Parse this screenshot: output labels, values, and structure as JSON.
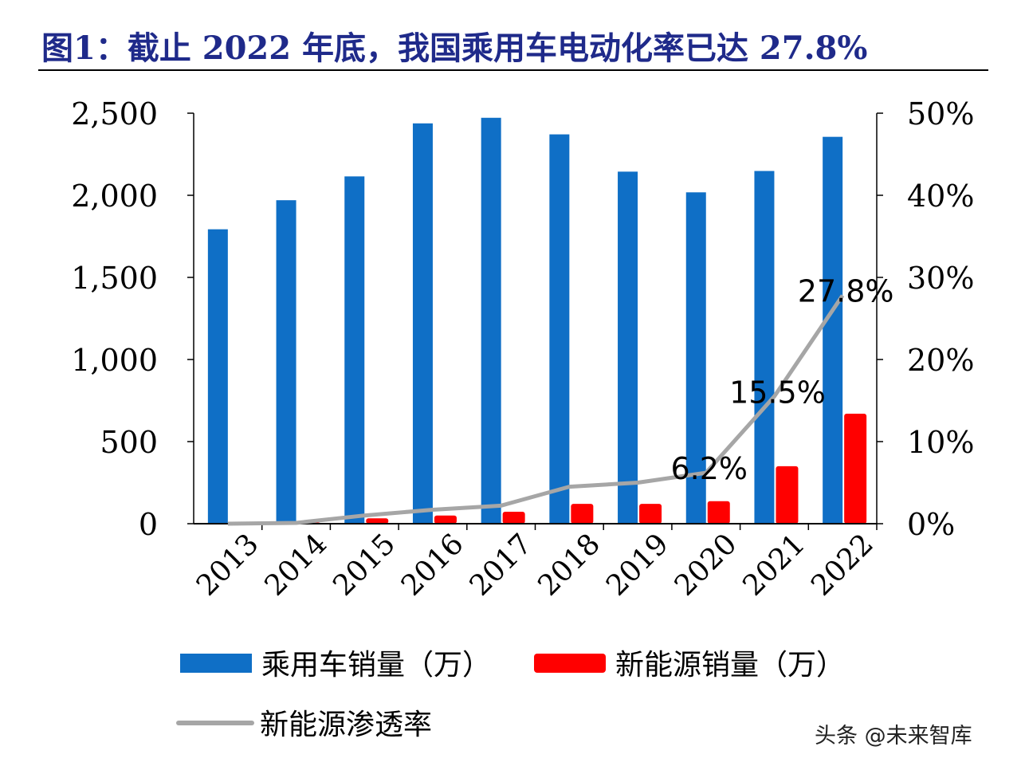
{
  "chart_data": {
    "type": "bar",
    "title": "图1：截止 2022 年底，我国乘用车电动化率已达 27.8%",
    "categories": [
      "2013",
      "2014",
      "2015",
      "2016",
      "2017",
      "2018",
      "2019",
      "2020",
      "2021",
      "2022"
    ],
    "series": [
      {
        "name": "乘用车销量（万）",
        "type": "bar",
        "axis": "left",
        "color": "#0f6fc6",
        "values": [
          1793,
          1970,
          2115,
          2438,
          2472,
          2371,
          2144,
          2018,
          2148,
          2356
        ]
      },
      {
        "name": "新能源销量（万）",
        "type": "bar",
        "axis": "left",
        "color": "#ff0000",
        "values": [
          2,
          7,
          33,
          50,
          73,
          121,
          121,
          137,
          350,
          670
        ]
      },
      {
        "name": "新能源渗透率",
        "type": "line",
        "axis": "right",
        "color": "#a6a6a6",
        "values": [
          0.0,
          0.1,
          1.0,
          1.7,
          2.2,
          4.5,
          5.0,
          6.2,
          15.5,
          27.8
        ]
      }
    ],
    "data_labels": [
      {
        "category": "2020",
        "text": "6.2%"
      },
      {
        "category": "2021",
        "text": "15.5%"
      },
      {
        "category": "2022",
        "text": "27.8%"
      }
    ],
    "ylim_left": [
      0,
      2500
    ],
    "yticks_left": [
      "0",
      "500",
      "1,000",
      "1,500",
      "2,000",
      "2,500"
    ],
    "ylim_right": [
      0,
      50
    ],
    "yticks_right": [
      "0%",
      "10%",
      "20%",
      "30%",
      "40%",
      "50%"
    ],
    "grid": false,
    "legend_placement": "bottom"
  },
  "watermark": "头条 @未来智库"
}
